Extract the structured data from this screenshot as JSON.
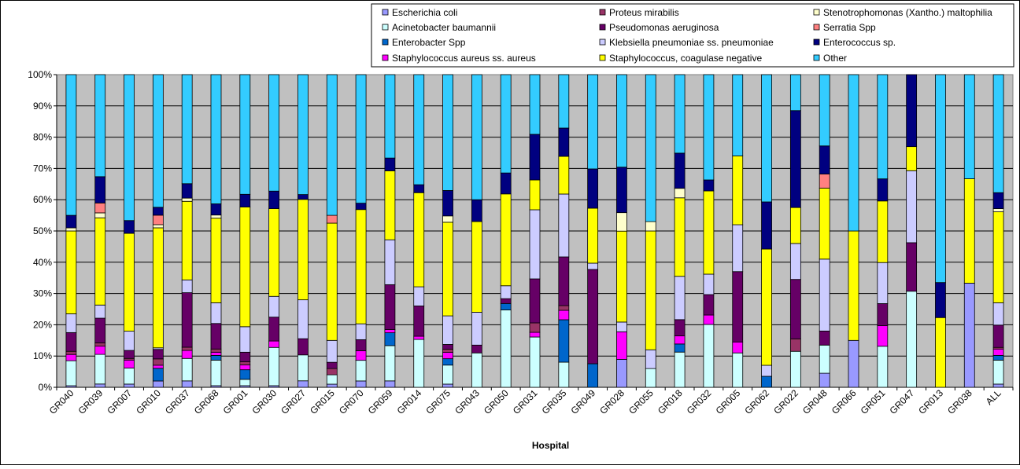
{
  "chart_data": {
    "type": "bar",
    "stacked": "percent",
    "xlabel": "Hospital",
    "ylabel": "",
    "ylim": [
      0,
      100
    ],
    "yticks": [
      "0%",
      "10%",
      "20%",
      "30%",
      "40%",
      "50%",
      "60%",
      "70%",
      "80%",
      "90%",
      "100%"
    ],
    "grid": true,
    "legend_position": "top-right",
    "categories": [
      "GR040",
      "GR039",
      "GR007",
      "GR010",
      "GR037",
      "GR068",
      "GR001",
      "GR030",
      "GR027",
      "GR015",
      "GR070",
      "GR059",
      "GR014",
      "GR075",
      "GR043",
      "GR050",
      "GR031",
      "GR035",
      "GR049",
      "GR028",
      "GR055",
      "GR018",
      "GR032",
      "GR005",
      "GR062",
      "GR022",
      "GR048",
      "GR066",
      "GR051",
      "GR047",
      "GR013",
      "GR038",
      "ALL"
    ],
    "series": [
      {
        "name": "Escherichia coli",
        "color": "#9999ff",
        "values": [
          0.5,
          1,
          1,
          2,
          2,
          0.5,
          0.5,
          0.5,
          2,
          1,
          2,
          2,
          0,
          1,
          0,
          0,
          0,
          0,
          0,
          8.6,
          0,
          0,
          0,
          0,
          0,
          0,
          4.5,
          15,
          0,
          0,
          0,
          33.3,
          1
        ]
      },
      {
        "name": "Acinetobacter baumannii",
        "color": "#ccffff",
        "values": [
          8,
          9,
          5,
          0,
          7,
          8,
          2,
          12,
          8,
          3,
          6.5,
          11,
          15,
          6,
          11,
          24,
          16,
          8,
          0,
          0,
          6,
          13,
          20,
          11,
          0,
          11.5,
          9,
          0,
          13,
          30.7,
          0,
          0,
          7.5
        ]
      },
      {
        "name": "Enterobacter Spp",
        "color": "#0066cc",
        "values": [
          0,
          0,
          0,
          4,
          0,
          1.5,
          3,
          0,
          0,
          0,
          0,
          4,
          0,
          2,
          0,
          2,
          0,
          13.5,
          7.5,
          0,
          0,
          3,
          0,
          0,
          3.5,
          0,
          0,
          0,
          0,
          0,
          0,
          0,
          1.5
        ]
      },
      {
        "name": "Staphylococcus aureus ss. aureus",
        "color": "#ff00ff",
        "values": [
          2,
          2.5,
          2.5,
          1,
          2.5,
          1,
          1.5,
          2,
          0,
          0,
          3,
          1,
          1,
          2,
          0,
          0,
          1.5,
          3,
          0,
          8.5,
          0,
          3,
          3,
          3.5,
          0,
          0,
          0,
          0,
          6.5,
          0,
          0,
          0,
          2
        ]
      },
      {
        "name": "Proteus mirabilis",
        "color": "#993366",
        "values": [
          1,
          1,
          0.5,
          2,
          1,
          1,
          1,
          0,
          0,
          2,
          0,
          0,
          0,
          1,
          0,
          0,
          3,
          1.5,
          0,
          0,
          0,
          0,
          0,
          0,
          0,
          4,
          0,
          0,
          0,
          0,
          0,
          0,
          0.5
        ]
      },
      {
        "name": "Pseudomonas aeruginosa",
        "color": "#660066",
        "values": [
          6,
          7.5,
          2.5,
          3,
          17,
          8,
          3,
          7.5,
          5,
          2,
          3.5,
          14,
          9.5,
          1.5,
          2.5,
          1.5,
          14,
          15.5,
          30,
          0,
          0,
          6,
          6.5,
          22.5,
          0,
          19,
          4.5,
          0,
          7,
          15.5,
          0,
          0,
          7
        ]
      },
      {
        "name": "Klebsiella pneumoniae ss. pneumoniae",
        "color": "#ccccff",
        "values": [
          6,
          4,
          6,
          0.5,
          4,
          6.5,
          8,
          6.5,
          12,
          7,
          5,
          14,
          6,
          9,
          10.5,
          4,
          22,
          20,
          2,
          3,
          6,
          16,
          6.5,
          15,
          3.5,
          11.5,
          23,
          0,
          13,
          23,
          0,
          0,
          7
        ]
      },
      {
        "name": "Staphylococcus, coagulase negative",
        "color": "#ffff00",
        "values": [
          26.5,
          26.5,
          30.5,
          38,
          24.5,
          26.5,
          37.5,
          27.5,
          31,
          37.5,
          36,
          21.5,
          29.5,
          29.5,
          29,
          28.5,
          9.5,
          12,
          17.5,
          28,
          38,
          29,
          26.5,
          22,
          37,
          11.5,
          22.7,
          35,
          19.5,
          7.7,
          22.3,
          33.4,
          28.5
        ]
      },
      {
        "name": "Stenotrophomonas (Xantho.) maltophilia",
        "color": "#ffffcc",
        "values": [
          1,
          1.5,
          0,
          1,
          1,
          1,
          0,
          0,
          0,
          0,
          0,
          0,
          0,
          2,
          0,
          0,
          0,
          0,
          0,
          5.7,
          3,
          3.5,
          0,
          0,
          0,
          0,
          0,
          0,
          0,
          0,
          0,
          0,
          1
        ]
      },
      {
        "name": "Serratia Spp",
        "color": "#ff8080",
        "values": [
          0,
          3,
          0,
          3,
          0,
          0,
          0,
          0,
          0,
          2.5,
          0,
          0,
          0,
          0,
          0,
          0,
          0,
          0,
          0,
          0,
          0,
          0,
          0,
          0,
          0,
          0,
          4.5,
          0,
          0,
          0,
          0,
          0,
          0
        ]
      },
      {
        "name": "Enterococcus sp.",
        "color": "#000080",
        "values": [
          4,
          8,
          4,
          2.5,
          4.5,
          3.5,
          4,
          5.5,
          1.5,
          0,
          2,
          4,
          2.5,
          8,
          7,
          6.5,
          14.5,
          9,
          12.5,
          14,
          0,
          13,
          3.5,
          0,
          15,
          31,
          9,
          0,
          7,
          23,
          11.2,
          0,
          5
        ]
      },
      {
        "name": "Other",
        "color": "#33ccff",
        "values": [
          45,
          31,
          45.5,
          42,
          34,
          40.5,
          37.5,
          36.5,
          37,
          45,
          40.5,
          26,
          34.5,
          36.5,
          40,
          30.5,
          19,
          17,
          30,
          28.5,
          47,
          29,
          33.5,
          26,
          40.5,
          11.5,
          22.8,
          50,
          33,
          0,
          66.5,
          33.3,
          37
        ]
      }
    ]
  }
}
